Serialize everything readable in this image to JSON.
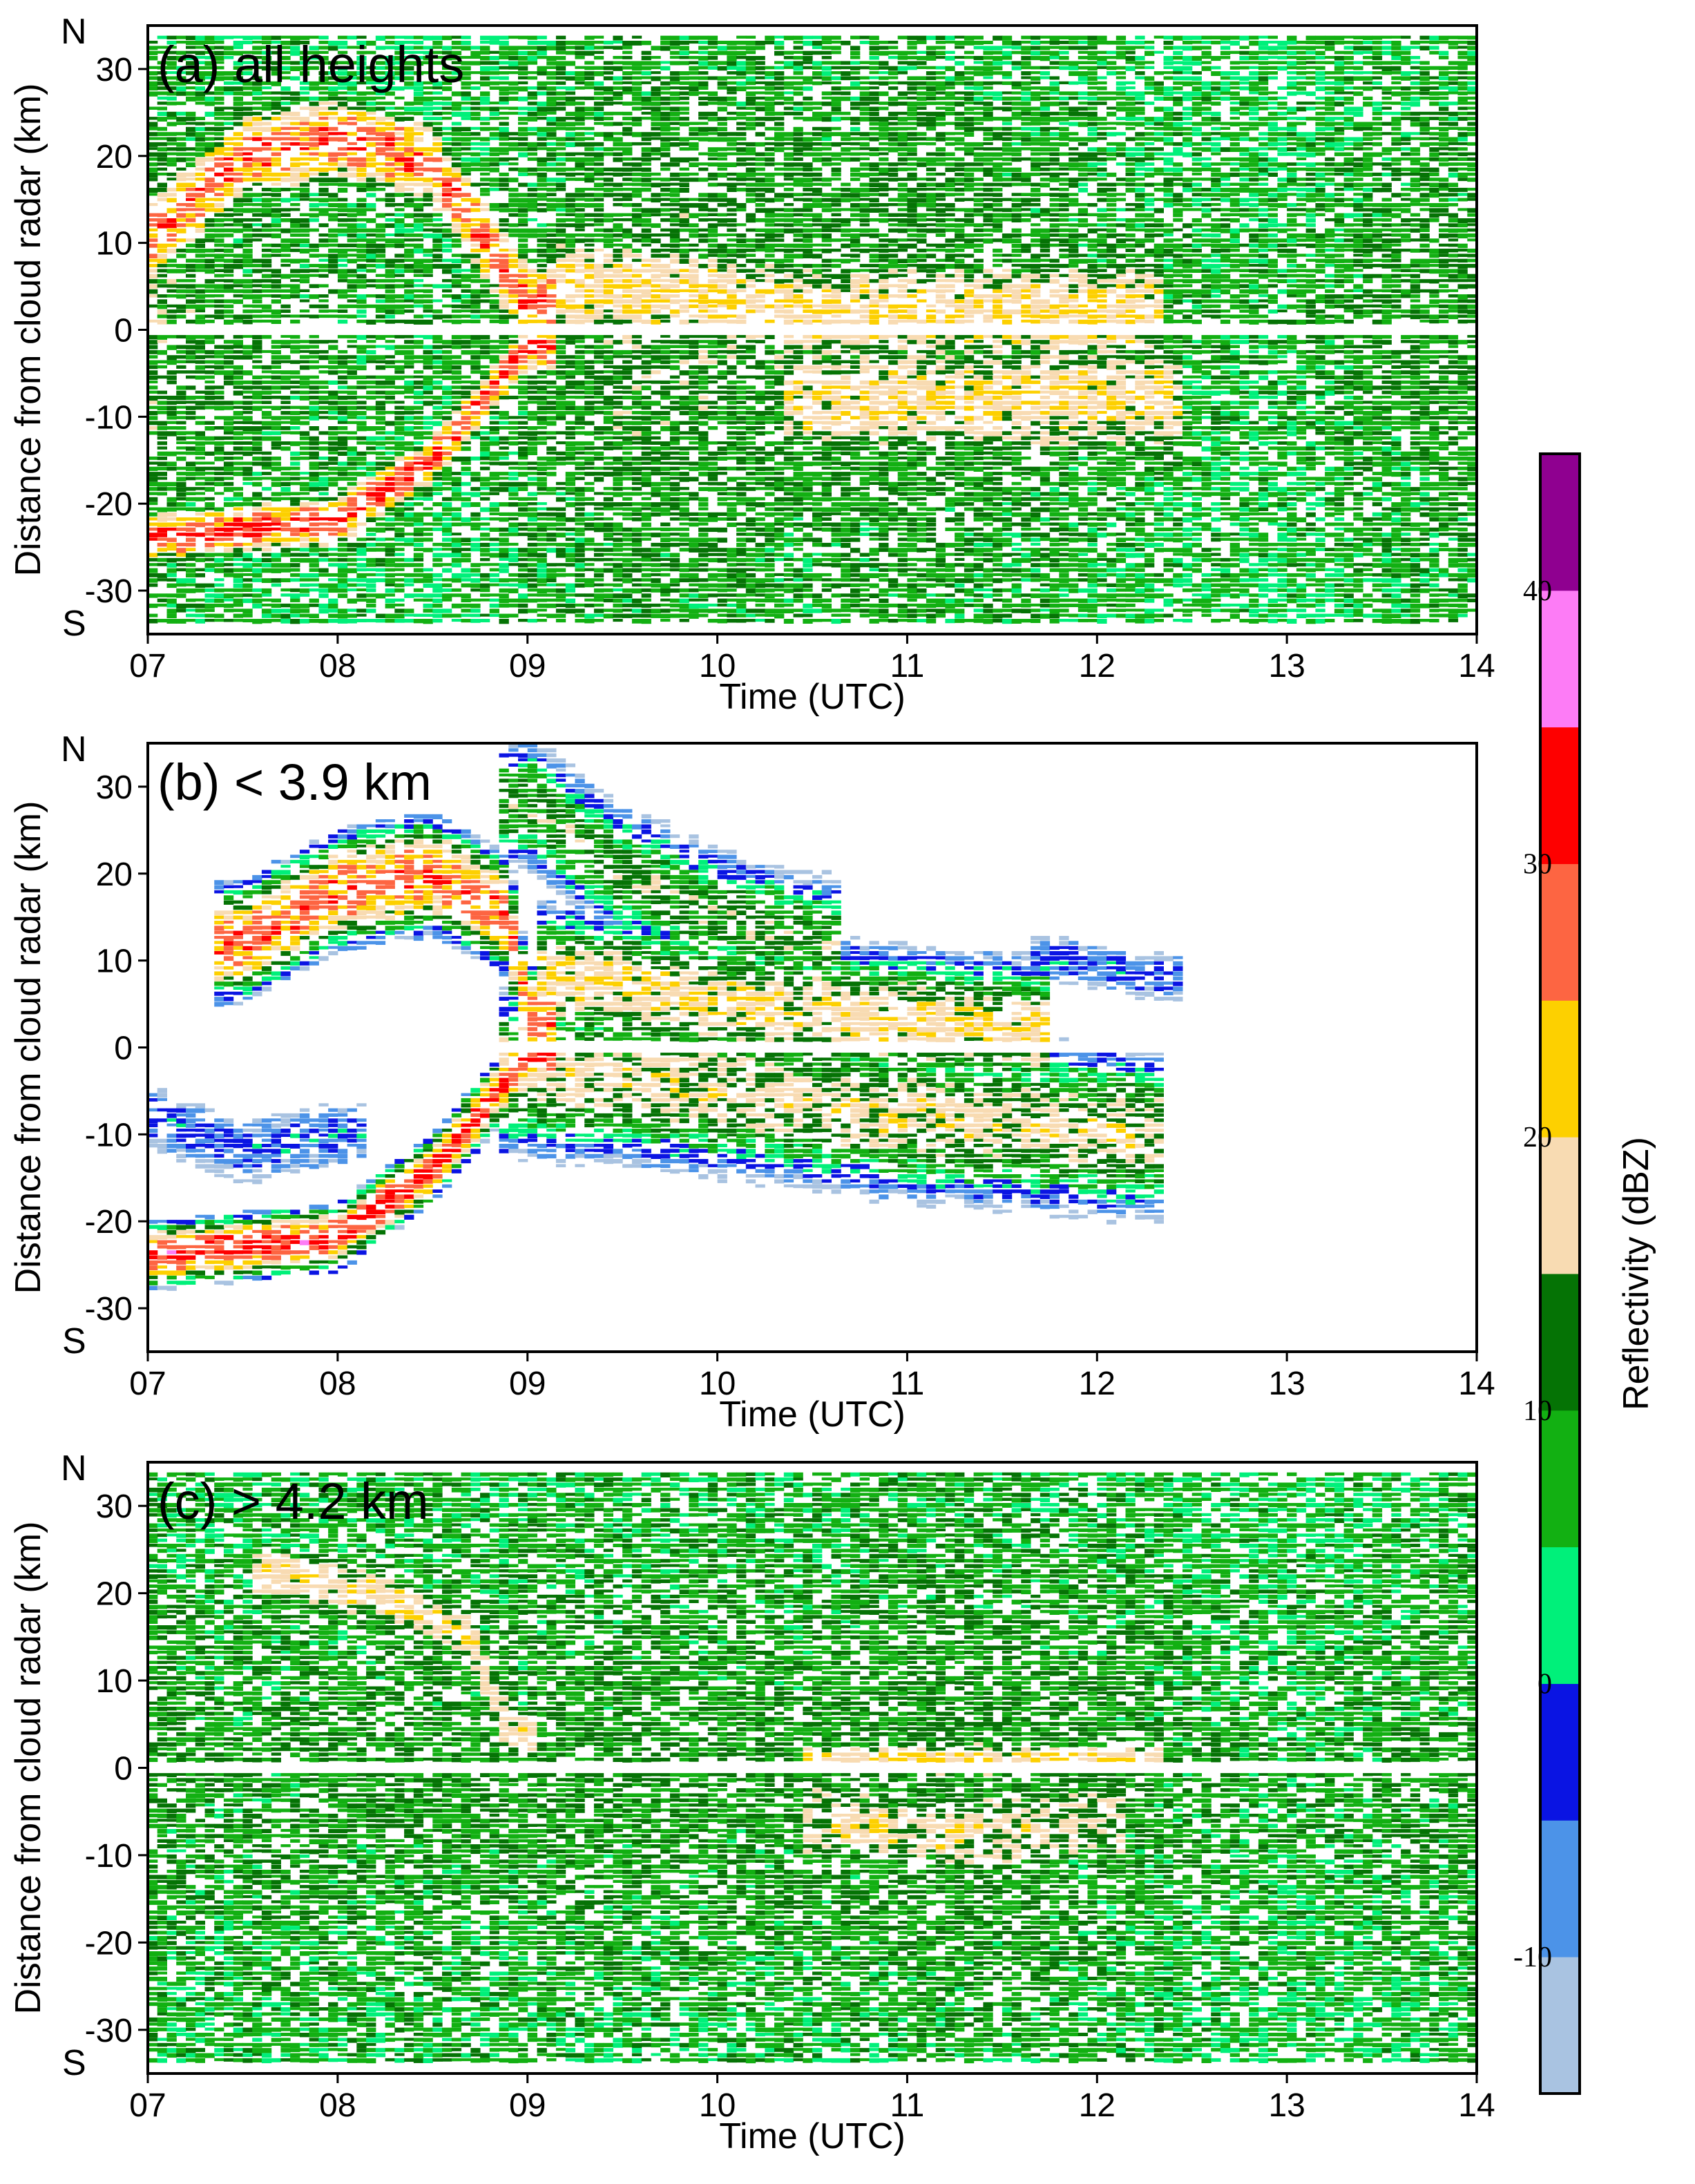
{
  "chart_data": {
    "type": "heatmap",
    "colorbar": {
      "label": "Reflectivity (dBZ)",
      "bounds": [
        -15,
        -10,
        -5,
        0,
        5,
        10,
        15,
        20,
        25,
        30,
        35,
        40,
        45
      ],
      "colors": [
        "#a9c3e1",
        "#4c93e8",
        "#0a14e3",
        "#00f07a",
        "#12b012",
        "#057305",
        "#f8dbb2",
        "#fdd000",
        "#fd6542",
        "#fe0000",
        "#fd7cf6",
        "#8f0090"
      ],
      "tick_values": [
        -10,
        0,
        10,
        20,
        30,
        40
      ],
      "tick_labels": [
        "-10",
        "0",
        "10",
        "20",
        "30",
        "40"
      ]
    },
    "panels": [
      {
        "title": "(a) all heights",
        "xlabel": "Time (UTC)",
        "ylabel": "Distance from cloud radar (km)",
        "north_label": "N",
        "south_label": "S",
        "xlim": [
          7,
          14
        ],
        "ylim": [
          -35,
          35
        ],
        "x_ticks": [
          "07",
          "08",
          "09",
          "10",
          "11",
          "12",
          "13",
          "14"
        ],
        "y_ticks": [
          "30",
          "20",
          "10",
          "0",
          "-10",
          "-20",
          "-30"
        ],
        "features": [
          {
            "cells": [
              [
                7.0,
                12
              ],
              [
                7.5,
                10
              ],
              [
                8.0,
                9
              ],
              [
                8.5,
                8
              ],
              [
                9.0,
                10
              ],
              [
                9.5,
                12
              ],
              [
                10.0,
                12
              ],
              [
                10.5,
                11
              ],
              [
                11.0,
                12
              ],
              [
                11.5,
                11
              ],
              [
                12.0,
                10
              ],
              [
                12.5,
                8
              ],
              [
                13.0,
                8
              ],
              [
                13.5,
                10
              ],
              [
                14.0,
                11
              ]
            ],
            "y_half_width": 34,
            "comment": "background stratiform echo"
          },
          {
            "track": [
              [
                7.0,
                10
              ],
              [
                7.5,
                20
              ],
              [
                8.0,
                22
              ],
              [
                8.5,
                19
              ],
              [
                9.0,
                3
              ]
            ],
            "dbz": 28,
            "width_km": 9
          },
          {
            "track": [
              [
                7.0,
                -24
              ],
              [
                8.0,
                -22
              ],
              [
                8.5,
                -15
              ],
              [
                8.85,
                -6
              ],
              [
                9.0,
                -2
              ]
            ],
            "dbz": 30,
            "width_km": 5
          },
          {
            "track": [
              [
                9.3,
                5
              ],
              [
                10.5,
                2
              ],
              [
                11.5,
                2
              ],
              [
                12.2,
                2
              ]
            ],
            "dbz": 20,
            "width_km": 14
          },
          {
            "track": [
              [
                10.5,
                -8
              ],
              [
                11.5,
                -8
              ],
              [
                12.3,
                -8
              ]
            ],
            "dbz": 19,
            "width_km": 16
          },
          {
            "track": [
              [
                7.0,
                8
              ],
              [
                7.3,
                2
              ],
              [
                7.6,
                -5
              ],
              [
                8.0,
                -7
              ]
            ],
            "dbz": -3,
            "width_km": 8
          },
          {
            "track": [
              [
                12.5,
                5
              ],
              [
                13.0,
                2
              ],
              [
                13.5,
                -3
              ],
              [
                14.0,
                -4
              ]
            ],
            "dbz": 2,
            "width_km": 12
          }
        ]
      },
      {
        "title": "(b) < 3.9 km",
        "xlabel": "Time (UTC)",
        "ylabel": "Distance from cloud radar (km)",
        "north_label": "N",
        "south_label": "S",
        "xlim": [
          7,
          14
        ],
        "ylim": [
          -35,
          35
        ],
        "x_ticks": [
          "07",
          "08",
          "09",
          "10",
          "11",
          "12",
          "13",
          "14"
        ],
        "y_ticks": [
          "30",
          "20",
          "10",
          "0",
          "-10",
          "-20",
          "-30"
        ],
        "features": [
          {
            "track": [
              [
                7.5,
                12
              ],
              [
                8.0,
                18
              ],
              [
                8.5,
                20
              ],
              [
                8.9,
                15
              ],
              [
                9.0,
                3
              ]
            ],
            "dbz": 28,
            "width_km": 9
          },
          {
            "track": [
              [
                7.0,
                -24
              ],
              [
                8.0,
                -22
              ],
              [
                8.5,
                -14
              ],
              [
                8.85,
                -5
              ],
              [
                9.0,
                -1
              ]
            ],
            "dbz": 31,
            "width_km": 5
          },
          {
            "track": [
              [
                9.2,
                8
              ],
              [
                10.0,
                5
              ],
              [
                11.0,
                3
              ],
              [
                11.6,
                2
              ]
            ],
            "dbz": 19,
            "width_km": 12
          },
          {
            "track": [
              [
                9.0,
                -3
              ],
              [
                10.0,
                -5
              ],
              [
                11.0,
                -8
              ],
              [
                12.2,
                -10
              ]
            ],
            "dbz": 17,
            "width_km": 14
          },
          {
            "track": [
              [
                9.0,
                28
              ],
              [
                9.5,
                20
              ],
              [
                10.0,
                15
              ],
              [
                10.5,
                12
              ]
            ],
            "dbz": 12,
            "width_km": 12
          },
          {
            "track": [
              [
                7.0,
                -8
              ],
              [
                7.5,
                -12
              ],
              [
                8.0,
                -10
              ]
            ],
            "dbz": -3,
            "width_km": 8
          },
          {
            "track": [
              [
                11.8,
                10
              ],
              [
                12.3,
                8
              ]
            ],
            "dbz": -3,
            "width_km": 6
          }
        ]
      },
      {
        "title": "(c) > 4.2 km",
        "xlabel": "Time (UTC)",
        "ylabel": "Distance from cloud radar (km)",
        "north_label": "N",
        "south_label": "S",
        "xlim": [
          7,
          14
        ],
        "ylim": [
          -35,
          35
        ],
        "x_ticks": [
          "07",
          "08",
          "09",
          "10",
          "11",
          "12",
          "13",
          "14"
        ],
        "y_ticks": [
          "30",
          "20",
          "10",
          "0",
          "-10",
          "-20",
          "-30"
        ],
        "features": [
          {
            "cells": [
              [
                7.0,
                10
              ],
              [
                7.5,
                9
              ],
              [
                8.0,
                10
              ],
              [
                8.5,
                10
              ],
              [
                9.0,
                10
              ],
              [
                9.5,
                10
              ],
              [
                10.0,
                10
              ],
              [
                10.5,
                10
              ],
              [
                11.0,
                11
              ],
              [
                11.5,
                11
              ],
              [
                12.0,
                10
              ],
              [
                12.5,
                9
              ],
              [
                13.0,
                8
              ],
              [
                13.5,
                9
              ],
              [
                14.0,
                10
              ]
            ],
            "y_half_width": 34,
            "comment": "background stratiform echo"
          },
          {
            "track": [
              [
                7.7,
                22
              ],
              [
                8.2,
                20
              ],
              [
                8.7,
                15
              ],
              [
                8.9,
                4
              ]
            ],
            "dbz": 19,
            "width_km": 8
          },
          {
            "track": [
              [
                10.6,
                1
              ],
              [
                11.5,
                1
              ],
              [
                12.2,
                1
              ]
            ],
            "dbz": 20,
            "width_km": 4
          },
          {
            "track": [
              [
                10.6,
                -6
              ],
              [
                11.3,
                -8
              ],
              [
                12.0,
                -6
              ]
            ],
            "dbz": 17,
            "width_km": 12
          },
          {
            "track": [
              [
                7.0,
                8
              ],
              [
                7.4,
                2
              ],
              [
                7.8,
                -4
              ],
              [
                8.2,
                -7
              ]
            ],
            "dbz": -4,
            "width_km": 9
          },
          {
            "track": [
              [
                12.4,
                4
              ],
              [
                13.0,
                2
              ],
              [
                13.5,
                -4
              ],
              [
                14.0,
                -5
              ]
            ],
            "dbz": 1,
            "width_km": 10
          }
        ]
      }
    ]
  }
}
